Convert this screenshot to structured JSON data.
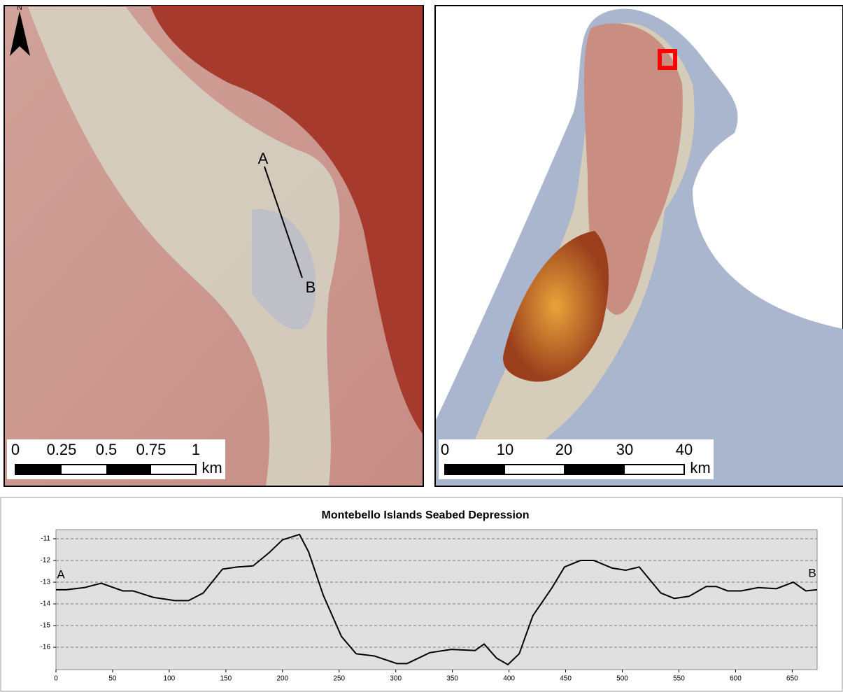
{
  "maps": {
    "north_label": "N",
    "left": {
      "labels": [
        "A",
        "B"
      ],
      "scale": [
        "0",
        "0.25",
        "0.5",
        "0.75",
        "1"
      ],
      "unit": "km"
    },
    "right": {
      "scale": [
        "0",
        "10",
        "20",
        "30",
        "40"
      ],
      "unit": "km"
    }
  },
  "chart_data": {
    "type": "line",
    "title": "Montebello Islands Seabed Depression",
    "annotations": [
      "A",
      "B"
    ],
    "x": [
      0,
      9,
      25,
      40,
      59,
      68,
      86,
      105,
      117,
      130,
      147,
      160,
      174,
      188,
      200,
      215,
      223,
      236,
      252,
      265,
      281,
      301,
      310,
      330,
      349,
      370,
      378,
      389,
      399,
      409,
      421,
      438,
      449,
      463,
      475,
      491,
      503,
      515,
      534,
      546,
      559,
      574,
      583,
      593,
      605,
      620,
      636,
      651,
      662,
      672
    ],
    "values": [
      -13.35,
      -13.35,
      -13.25,
      -13.05,
      -13.4,
      -13.4,
      -13.7,
      -13.85,
      -13.85,
      -13.5,
      -12.4,
      -12.3,
      -12.25,
      -11.65,
      -11.05,
      -10.8,
      -11.6,
      -13.6,
      -15.5,
      -16.3,
      -16.4,
      -16.75,
      -16.75,
      -16.25,
      -16.1,
      -16.15,
      -15.85,
      -16.5,
      -16.8,
      -16.3,
      -14.55,
      -13.25,
      -12.3,
      -12,
      -12,
      -12.35,
      -12.45,
      -12.3,
      -13.5,
      -13.75,
      -13.65,
      -13.2,
      -13.2,
      -13.4,
      -13.4,
      -13.25,
      -13.3,
      -13,
      -13.4,
      -13.35
    ],
    "color": "#000000",
    "xlim": [
      0,
      672
    ],
    "xticks": [
      0,
      50,
      100,
      150,
      200,
      250,
      300,
      350,
      400,
      450,
      500,
      550,
      600,
      650
    ],
    "ylim": [
      -17.03,
      -10.58
    ],
    "yticks": [
      -11,
      -12,
      -13,
      -14,
      -15,
      -16
    ],
    "grid": true
  }
}
